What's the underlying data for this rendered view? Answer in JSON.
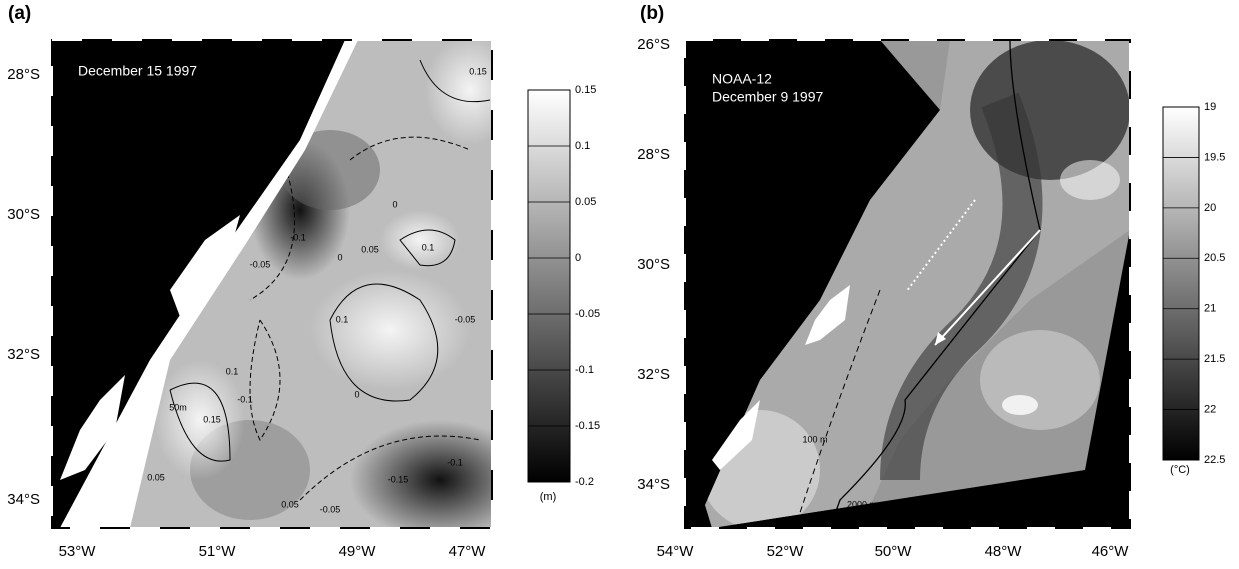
{
  "panels": [
    {
      "label": "(a)",
      "annotation": [
        "December 15 1997"
      ],
      "lat_labels": [
        "28°S",
        "30°S",
        "32°S",
        "34°S"
      ],
      "lon_labels": [
        "53°W",
        "51°W",
        "49°W",
        "47°W"
      ],
      "contour_labels": [
        "0.15",
        "-0.05",
        "-0.1",
        "0.1",
        "0",
        "0.05",
        "0.1",
        "-0.05",
        "0",
        "-0.1",
        "0",
        "-0.15",
        "-0.05",
        "0.05",
        "-0.1",
        "0.05",
        "0.15",
        "0.1",
        "50m"
      ],
      "colorbar": {
        "ticks": [
          0.15,
          0.1,
          0.05,
          0,
          -0.05,
          -0.1,
          -0.15,
          -0.2
        ],
        "unit": "(m)"
      }
    },
    {
      "label": "(b)",
      "annotation": [
        "NOAA-12",
        "December 9 1997"
      ],
      "lat_labels": [
        "26°S",
        "28°S",
        "30°S",
        "32°S",
        "34°S"
      ],
      "lon_labels": [
        "54°W",
        "52°W",
        "50°W",
        "48°W",
        "46°W"
      ],
      "contour_labels": [
        "100 m",
        "2000 m"
      ],
      "colorbar": {
        "ticks": [
          19,
          19.5,
          20,
          20.5,
          21,
          21.5,
          22,
          22.5
        ],
        "unit": "(°C)"
      }
    }
  ]
}
